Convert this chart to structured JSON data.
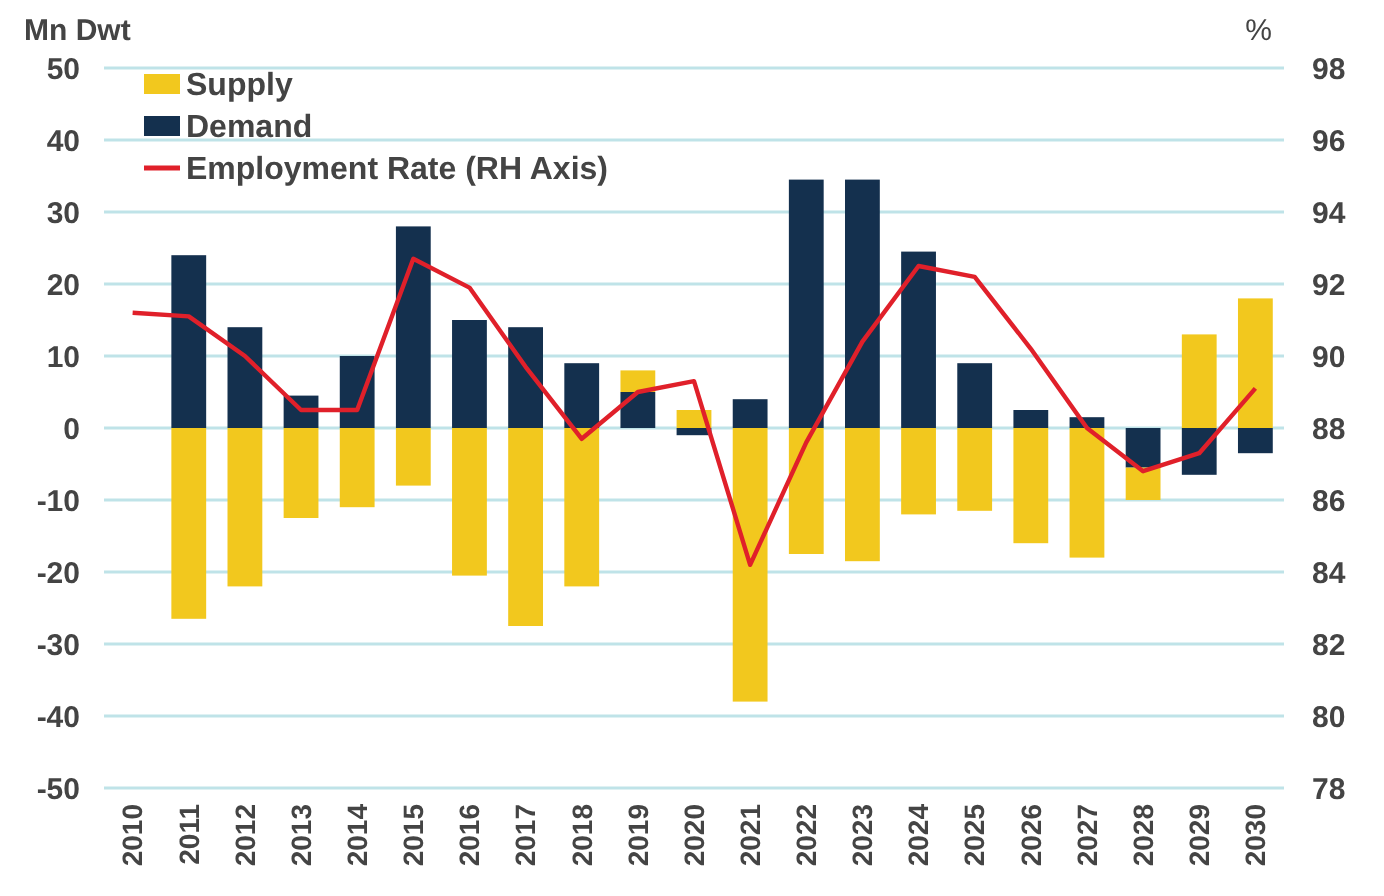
{
  "chart_data": {
    "type": "bar",
    "ylabel": "Mn Dwt",
    "y2label": "%",
    "stacked": true,
    "categories": [
      "2010",
      "2011",
      "2012",
      "2013",
      "2014",
      "2015",
      "2016",
      "2017",
      "2018",
      "2019",
      "2020",
      "2021",
      "2022",
      "2023",
      "2024",
      "2025",
      "2026",
      "2027",
      "2028",
      "2029",
      "2030"
    ],
    "series": [
      {
        "name": "Demand",
        "color": "#14304e",
        "values": [
          null,
          24,
          14,
          4.5,
          10,
          28,
          15,
          14,
          9,
          5,
          -1,
          4,
          34.5,
          34.5,
          24.5,
          9,
          2.5,
          1.5,
          -5.5,
          -6.5,
          -3.5
        ]
      },
      {
        "name": "Supply",
        "color": "#f2c81e",
        "values": [
          null,
          -26.5,
          -22,
          -12.5,
          -11,
          -8,
          -20.5,
          -27.5,
          -22,
          3,
          2.5,
          -38,
          -17.5,
          -18.5,
          -12,
          -11.5,
          -16,
          -18,
          -4.5,
          13,
          18
        ]
      },
      {
        "name": "Employment Rate (RH Axis)",
        "type": "line",
        "axis": "y2",
        "color": "#e0202a",
        "values": [
          91.2,
          91.1,
          90,
          88.5,
          88.5,
          92.7,
          91.9,
          89.7,
          87.7,
          89,
          89.3,
          84.2,
          87.6,
          90.4,
          92.5,
          92.2,
          90.2,
          88,
          86.8,
          87.3,
          89.1
        ]
      }
    ],
    "ylim": [
      -50,
      50
    ],
    "yticks": [
      -50,
      -40,
      -30,
      -20,
      -10,
      0,
      10,
      20,
      30,
      40,
      50
    ],
    "y2lim": [
      78,
      98
    ],
    "y2ticks": [
      78,
      80,
      82,
      84,
      86,
      88,
      90,
      92,
      94,
      96,
      98
    ],
    "grid": "y",
    "legend": "top left",
    "marker": "none",
    "line_style": "solid"
  }
}
